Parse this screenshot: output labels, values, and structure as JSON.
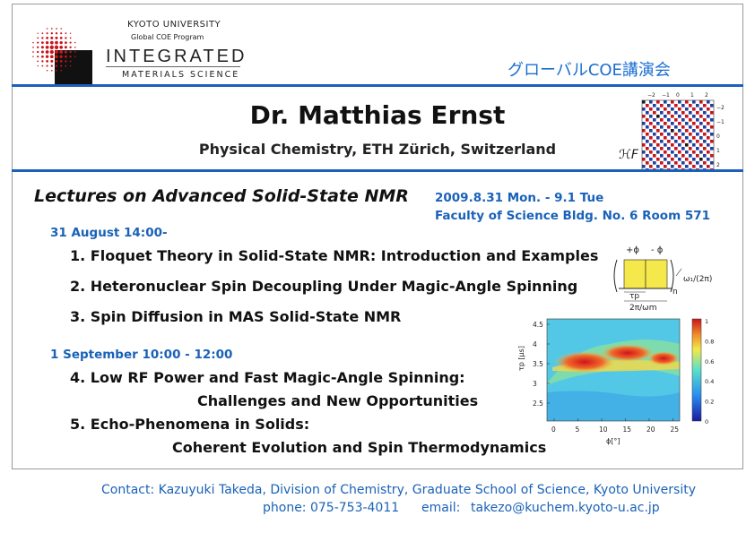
{
  "logo": {
    "university": "KYOTO UNIVERSITY",
    "program": "Global COE Program",
    "line1": "INTEGRATED",
    "line2": "MATERIALS SCIENCE"
  },
  "jp_title": "グローバルCOE講演会",
  "speaker": {
    "name": "Dr. Matthias Ernst",
    "affiliation": "Physical Chemistry, ETH Zürich, Switzerland"
  },
  "lecture": {
    "title": "Lectures on Advanced Solid-State NMR",
    "date": "2009.8.31 Mon. - 9.1 Tue",
    "venue": "Faculty of Science Bldg. No. 6  Room 571"
  },
  "days": [
    {
      "heading": "31 August  14:00-",
      "talks": [
        "1. Floquet Theory in Solid-State NMR: Introduction and Examples",
        "2. Heteronuclear Spin Decoupling Under Magic-Angle Spinning",
        "3. Spin Diffusion in MAS Solid-State NMR"
      ]
    },
    {
      "heading": "1 September  10:00 - 12:00",
      "talks": [
        "4. Low RF Power and Fast Magic-Angle Spinning:",
        "Challenges and New Opportunities",
        "5. Echo-Phenomena in Solids:",
        "Coherent Evolution and Spin Thermodynamics"
      ]
    }
  ],
  "contact": {
    "line": "Contact: Kazuyuki Takeda, Division of Chemistry, Graduate School of Science, Kyoto University",
    "phone": "phone: 075-753-4011",
    "email_label": "email:",
    "email": "takezo@kuchem.kyoto-u.ac.jp"
  },
  "figures": {
    "matrix": {
      "symbol": "ℋF",
      "col_labels": [
        "−2",
        "−1",
        "0",
        "1",
        "2"
      ],
      "row_labels": [
        "−2",
        "−1",
        "0",
        "1",
        "2"
      ]
    },
    "sequence": {
      "plus_phi": "+ϕ",
      "minus_phi": "- ϕ",
      "omega_label": "ω₁/(2π)",
      "tau_label": "τp",
      "period_label": "2π/ωm",
      "n_label": "n"
    },
    "heatmap": {
      "ylabel": "τp [μs]",
      "xlabel": "ϕ[°]",
      "y_ticks": [
        "4.5",
        "4",
        "3.5",
        "3",
        "2.5"
      ],
      "x_ticks": [
        "0",
        "5",
        "10",
        "15",
        "20",
        "25"
      ],
      "cbar_ticks": [
        "1",
        "0.8",
        "0.6",
        "0.4",
        "0.2",
        "0"
      ]
    }
  }
}
